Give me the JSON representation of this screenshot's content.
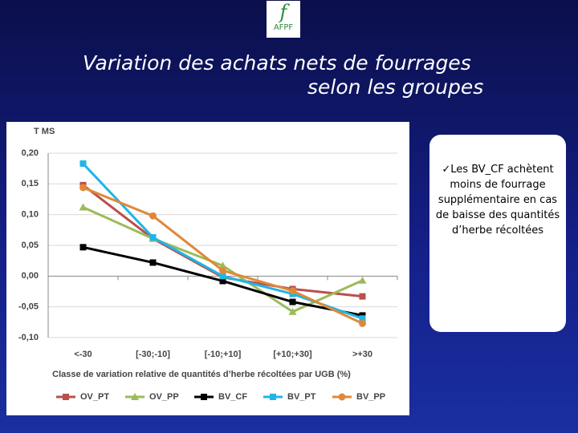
{
  "logo": {
    "text": "AFPF"
  },
  "title": [
    "Variation des achats nets de fourrages",
    "selon les groupes"
  ],
  "note": "✓Les BV_CF achètent moins de fourrage supplémentaire en cas de baisse des quantités d’herbe récoltées",
  "chart_data": {
    "type": "line",
    "ylabel": "T MS",
    "xlabel": "Classe de variation relative de quantités d’herbe  récoltées par UGB (%)",
    "categories": [
      "<-30",
      "[-30;-10]",
      "[-10;+10]",
      "[+10;+30]",
      ">+30"
    ],
    "ylim": [
      -0.1,
      0.2
    ],
    "yticks": [
      {
        "value": -0.1,
        "label": "-0,10"
      },
      {
        "value": -0.05,
        "label": "-0,05"
      },
      {
        "value": 0,
        "label": "0,00"
      },
      {
        "value": 0.05,
        "label": "0,05"
      },
      {
        "value": 0.1,
        "label": "0,10"
      },
      {
        "value": 0.15,
        "label": "0,15"
      },
      {
        "value": 0.2,
        "label": "0,20"
      }
    ],
    "grid": true,
    "legend": "bottom",
    "series": [
      {
        "name": "OV_PT",
        "color": "#b9504c",
        "marker": "square",
        "values": [
          0.148,
          0.061,
          -0.002,
          -0.021,
          -0.033
        ]
      },
      {
        "name": "OV_PP",
        "color": "#9bbb59",
        "marker": "triangle",
        "values": [
          0.112,
          0.061,
          0.017,
          -0.058,
          -0.007
        ]
      },
      {
        "name": "BV_CF",
        "color": "#000000",
        "marker": "square",
        "values": [
          0.047,
          0.022,
          -0.008,
          -0.042,
          -0.064
        ]
      },
      {
        "name": "BV_PT",
        "color": "#1fb5e8",
        "marker": "square",
        "values": [
          0.183,
          0.063,
          0.0,
          -0.029,
          -0.069
        ]
      },
      {
        "name": "BV_PP",
        "color": "#e0883a",
        "marker": "circle",
        "values": [
          0.144,
          0.098,
          0.009,
          -0.024,
          -0.077
        ]
      }
    ]
  }
}
